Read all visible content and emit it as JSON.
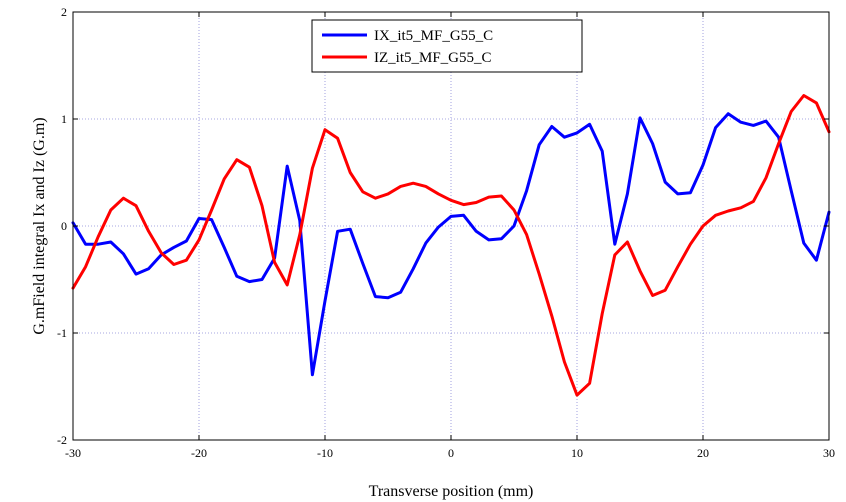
{
  "chart_data": {
    "type": "line",
    "xlabel": "Transverse position  (mm)",
    "ylabel": "G.mField integral Ix and Iz    (G.m)",
    "xlim": [
      -30,
      30
    ],
    "ylim": [
      -2,
      2
    ],
    "xticks": [
      -30,
      -20,
      -10,
      0,
      10,
      20,
      30
    ],
    "yticks": [
      -2,
      -1,
      0,
      1,
      2
    ],
    "grid": true,
    "grid_style": "dotted",
    "legend_position": "top-center",
    "series": [
      {
        "name": "IX_it5_MF_G55_C",
        "color": "#0000ff",
        "x": [
          -30,
          -29,
          -28,
          -27,
          -26,
          -25,
          -24,
          -23,
          -22,
          -21,
          -20,
          -19,
          -18,
          -17,
          -16,
          -15,
          -14,
          -13,
          -12,
          -11,
          -10,
          -9,
          -8,
          -7,
          -6,
          -5,
          -4,
          -3,
          -2,
          -1,
          0,
          1,
          2,
          3,
          4,
          5,
          6,
          7,
          8,
          9,
          10,
          11,
          12,
          13,
          14,
          15,
          16,
          17,
          18,
          19,
          20,
          21,
          22,
          23,
          24,
          25,
          26,
          27,
          28,
          29,
          30
        ],
        "y": [
          0.03,
          -0.17,
          -0.17,
          -0.15,
          -0.26,
          -0.45,
          -0.4,
          -0.27,
          -0.2,
          -0.14,
          0.07,
          0.06,
          -0.2,
          -0.47,
          -0.52,
          -0.5,
          -0.3,
          0.56,
          0.05,
          -1.39,
          -0.7,
          -0.05,
          -0.03,
          -0.35,
          -0.66,
          -0.67,
          -0.62,
          -0.4,
          -0.16,
          -0.01,
          0.09,
          0.1,
          -0.05,
          -0.13,
          -0.12,
          0.0,
          0.33,
          0.76,
          0.93,
          0.83,
          0.87,
          0.95,
          0.7,
          -0.17,
          0.3,
          1.01,
          0.77,
          0.41,
          0.3,
          0.31,
          0.57,
          0.92,
          1.05,
          0.97,
          0.94,
          0.98,
          0.83,
          0.33,
          -0.16,
          -0.32,
          0.13
        ]
      },
      {
        "name": "IZ_it5_MF_G55_C",
        "color": "#ff0000",
        "x": [
          -30,
          -29,
          -28,
          -27,
          -26,
          -25,
          -24,
          -23,
          -22,
          -21,
          -20,
          -19,
          -18,
          -17,
          -16,
          -15,
          -14,
          -13,
          -12,
          -11,
          -10,
          -9,
          -8,
          -7,
          -6,
          -5,
          -4,
          -3,
          -2,
          -1,
          0,
          1,
          2,
          3,
          4,
          5,
          6,
          7,
          8,
          9,
          10,
          11,
          12,
          13,
          14,
          15,
          16,
          17,
          18,
          19,
          20,
          21,
          22,
          23,
          24,
          25,
          26,
          27,
          28,
          29,
          30
        ],
        "y": [
          -0.58,
          -0.38,
          -0.1,
          0.15,
          0.26,
          0.19,
          -0.05,
          -0.25,
          -0.36,
          -0.32,
          -0.13,
          0.15,
          0.44,
          0.62,
          0.55,
          0.19,
          -0.34,
          -0.55,
          -0.08,
          0.54,
          0.9,
          0.82,
          0.5,
          0.32,
          0.26,
          0.3,
          0.37,
          0.4,
          0.37,
          0.3,
          0.24,
          0.2,
          0.22,
          0.27,
          0.28,
          0.15,
          -0.08,
          -0.45,
          -0.84,
          -1.27,
          -1.58,
          -1.47,
          -0.82,
          -0.27,
          -0.15,
          -0.42,
          -0.65,
          -0.6,
          -0.38,
          -0.17,
          0.0,
          0.1,
          0.14,
          0.17,
          0.23,
          0.45,
          0.77,
          1.07,
          1.22,
          1.15,
          0.88
        ]
      }
    ]
  }
}
